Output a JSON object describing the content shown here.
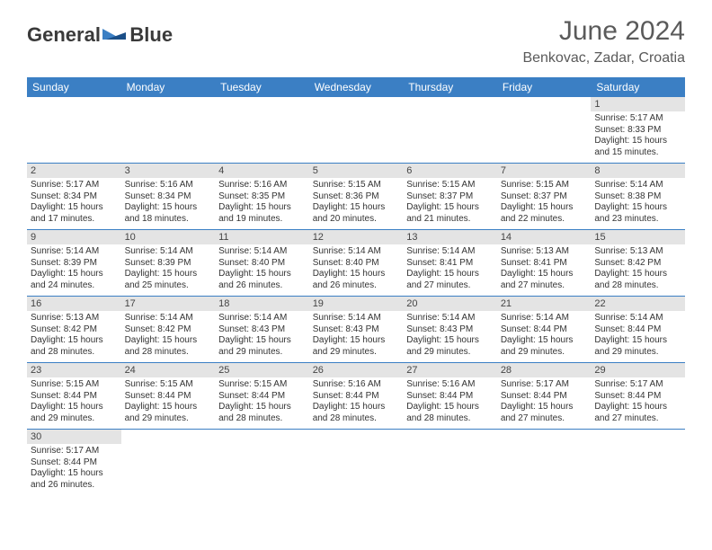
{
  "brand": {
    "word1": "General",
    "word2": "Blue"
  },
  "title": "June 2024",
  "location": "Benkovac, Zadar, Croatia",
  "colors": {
    "header_bg": "#3b7fc4",
    "header_text": "#ffffff",
    "daynum_bg": "#e4e4e4",
    "border": "#3b7fc4",
    "title_text": "#5a5a5a"
  },
  "font": {
    "family": "Arial",
    "title_size": 30,
    "location_size": 16,
    "dayhead_size": 12,
    "daynum_size": 11,
    "body_size": 10
  },
  "day_headers": [
    "Sunday",
    "Monday",
    "Tuesday",
    "Wednesday",
    "Thursday",
    "Friday",
    "Saturday"
  ],
  "weeks": [
    [
      null,
      null,
      null,
      null,
      null,
      null,
      {
        "n": "1",
        "sr": "5:17 AM",
        "ss": "8:33 PM",
        "dh": "15",
        "dm": "15"
      }
    ],
    [
      {
        "n": "2",
        "sr": "5:17 AM",
        "ss": "8:34 PM",
        "dh": "15",
        "dm": "17"
      },
      {
        "n": "3",
        "sr": "5:16 AM",
        "ss": "8:34 PM",
        "dh": "15",
        "dm": "18"
      },
      {
        "n": "4",
        "sr": "5:16 AM",
        "ss": "8:35 PM",
        "dh": "15",
        "dm": "19"
      },
      {
        "n": "5",
        "sr": "5:15 AM",
        "ss": "8:36 PM",
        "dh": "15",
        "dm": "20"
      },
      {
        "n": "6",
        "sr": "5:15 AM",
        "ss": "8:37 PM",
        "dh": "15",
        "dm": "21"
      },
      {
        "n": "7",
        "sr": "5:15 AM",
        "ss": "8:37 PM",
        "dh": "15",
        "dm": "22"
      },
      {
        "n": "8",
        "sr": "5:14 AM",
        "ss": "8:38 PM",
        "dh": "15",
        "dm": "23"
      }
    ],
    [
      {
        "n": "9",
        "sr": "5:14 AM",
        "ss": "8:39 PM",
        "dh": "15",
        "dm": "24"
      },
      {
        "n": "10",
        "sr": "5:14 AM",
        "ss": "8:39 PM",
        "dh": "15",
        "dm": "25"
      },
      {
        "n": "11",
        "sr": "5:14 AM",
        "ss": "8:40 PM",
        "dh": "15",
        "dm": "26"
      },
      {
        "n": "12",
        "sr": "5:14 AM",
        "ss": "8:40 PM",
        "dh": "15",
        "dm": "26"
      },
      {
        "n": "13",
        "sr": "5:14 AM",
        "ss": "8:41 PM",
        "dh": "15",
        "dm": "27"
      },
      {
        "n": "14",
        "sr": "5:13 AM",
        "ss": "8:41 PM",
        "dh": "15",
        "dm": "27"
      },
      {
        "n": "15",
        "sr": "5:13 AM",
        "ss": "8:42 PM",
        "dh": "15",
        "dm": "28"
      }
    ],
    [
      {
        "n": "16",
        "sr": "5:13 AM",
        "ss": "8:42 PM",
        "dh": "15",
        "dm": "28"
      },
      {
        "n": "17",
        "sr": "5:14 AM",
        "ss": "8:42 PM",
        "dh": "15",
        "dm": "28"
      },
      {
        "n": "18",
        "sr": "5:14 AM",
        "ss": "8:43 PM",
        "dh": "15",
        "dm": "29"
      },
      {
        "n": "19",
        "sr": "5:14 AM",
        "ss": "8:43 PM",
        "dh": "15",
        "dm": "29"
      },
      {
        "n": "20",
        "sr": "5:14 AM",
        "ss": "8:43 PM",
        "dh": "15",
        "dm": "29"
      },
      {
        "n": "21",
        "sr": "5:14 AM",
        "ss": "8:44 PM",
        "dh": "15",
        "dm": "29"
      },
      {
        "n": "22",
        "sr": "5:14 AM",
        "ss": "8:44 PM",
        "dh": "15",
        "dm": "29"
      }
    ],
    [
      {
        "n": "23",
        "sr": "5:15 AM",
        "ss": "8:44 PM",
        "dh": "15",
        "dm": "29"
      },
      {
        "n": "24",
        "sr": "5:15 AM",
        "ss": "8:44 PM",
        "dh": "15",
        "dm": "29"
      },
      {
        "n": "25",
        "sr": "5:15 AM",
        "ss": "8:44 PM",
        "dh": "15",
        "dm": "28"
      },
      {
        "n": "26",
        "sr": "5:16 AM",
        "ss": "8:44 PM",
        "dh": "15",
        "dm": "28"
      },
      {
        "n": "27",
        "sr": "5:16 AM",
        "ss": "8:44 PM",
        "dh": "15",
        "dm": "28"
      },
      {
        "n": "28",
        "sr": "5:17 AM",
        "ss": "8:44 PM",
        "dh": "15",
        "dm": "27"
      },
      {
        "n": "29",
        "sr": "5:17 AM",
        "ss": "8:44 PM",
        "dh": "15",
        "dm": "27"
      }
    ],
    [
      {
        "n": "30",
        "sr": "5:17 AM",
        "ss": "8:44 PM",
        "dh": "15",
        "dm": "26"
      },
      null,
      null,
      null,
      null,
      null,
      null
    ]
  ],
  "labels": {
    "sunrise": "Sunrise:",
    "sunset": "Sunset:",
    "daylight": "Daylight:",
    "hours": "hours",
    "and": "and",
    "minutes": "minutes."
  }
}
